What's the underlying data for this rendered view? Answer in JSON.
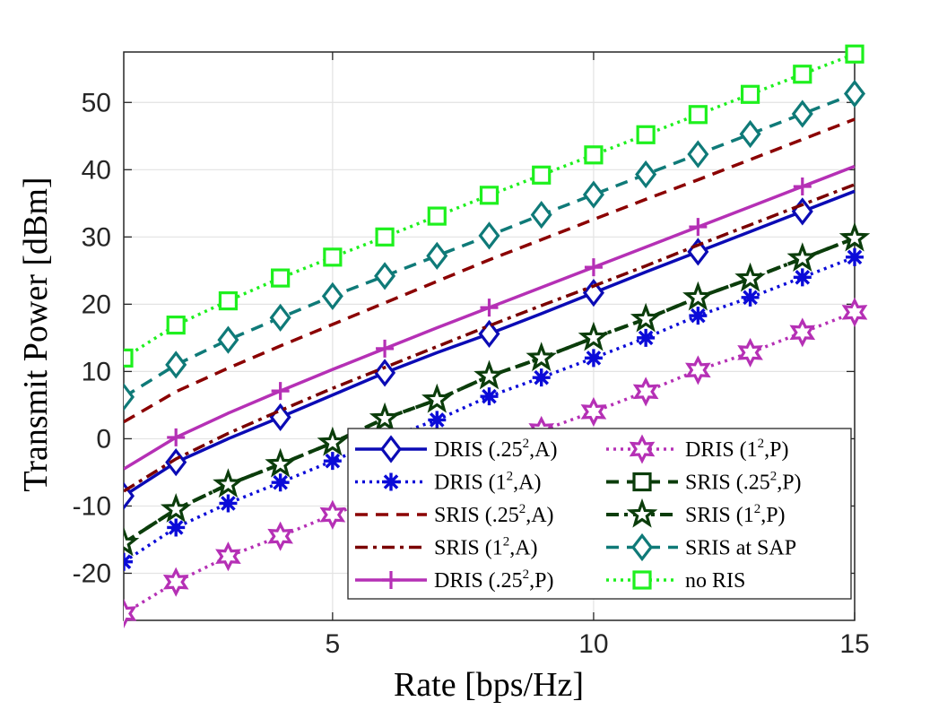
{
  "chart_data": {
    "type": "line",
    "xlabel": "Rate [bps/Hz]",
    "ylabel": "Transmit Power [dBm]",
    "xlim": [
      1,
      15
    ],
    "ylim": [
      -27,
      57.5
    ],
    "xticks": [
      5,
      10,
      15
    ],
    "yticks": [
      -20,
      -10,
      0,
      10,
      20,
      30,
      40,
      50
    ],
    "grid": true,
    "legend_position": "bottom-right",
    "legend_columns": 2,
    "series": [
      {
        "name": "DRIS (.25², A)",
        "label_main": "DRIS (.25",
        "label_sup": "2",
        "label_tail": ",A)",
        "color": "#0b0bb5",
        "dash": "",
        "width": 3.5,
        "marker": "diamond",
        "marker_x": [
          1,
          2,
          4,
          6,
          8,
          10,
          12,
          14
        ],
        "x": [
          1,
          2,
          3,
          4,
          5,
          6,
          7,
          8,
          9,
          10,
          11,
          12,
          13,
          14,
          15
        ],
        "y": [
          -8.5,
          -3.5,
          0,
          3.2,
          6.5,
          9.8,
          12.8,
          15.6,
          18.6,
          21.7,
          24.8,
          27.8,
          30.8,
          33.8,
          36.8
        ]
      },
      {
        "name": "DRIS (1², A)",
        "label_main": "DRIS (1",
        "label_sup": "2",
        "label_tail": ",A)",
        "color": "#0b0bd8",
        "dash": "3,5",
        "width": 3.5,
        "marker": "asterisk",
        "marker_x": [
          1,
          2,
          3,
          4,
          5,
          6,
          7,
          8,
          9,
          10,
          11,
          12,
          13,
          14,
          15
        ],
        "x": [
          1,
          2,
          3,
          4,
          5,
          6,
          7,
          8,
          9,
          10,
          11,
          12,
          13,
          14,
          15
        ],
        "y": [
          -18.3,
          -13.2,
          -9.6,
          -6.5,
          -3.3,
          0,
          2.8,
          6.3,
          9.1,
          12,
          15,
          18.3,
          21,
          24,
          27
        ]
      },
      {
        "name": "SRIS (.25², A)",
        "label_main": "SRIS (.25",
        "label_sup": "2",
        "label_tail": ",A)",
        "color": "#8b0000",
        "dash": "14,9",
        "width": 3.5,
        "marker": "none",
        "marker_x": [],
        "x": [
          1,
          2,
          3,
          4,
          5,
          6,
          7,
          8,
          9,
          10,
          11,
          12,
          13,
          14,
          15
        ],
        "y": [
          2.5,
          7,
          10.5,
          13.8,
          17,
          20.2,
          23.4,
          26.6,
          29.6,
          32.6,
          35.6,
          38.5,
          41.5,
          44.5,
          47.5
        ]
      },
      {
        "name": "SRIS (1², A)",
        "label_main": "SRIS (1",
        "label_sup": "2",
        "label_tail": ",A)",
        "color": "#7a0000",
        "dash": "14,6,4,6",
        "width": 3.5,
        "marker": "none",
        "marker_x": [],
        "x": [
          1,
          2,
          3,
          4,
          5,
          6,
          7,
          8,
          9,
          10,
          11,
          12,
          13,
          14,
          15
        ],
        "y": [
          -7.8,
          -3,
          0.8,
          4.2,
          7.5,
          10.6,
          13.7,
          16.8,
          19.8,
          22.7,
          25.7,
          28.8,
          31.8,
          34.8,
          37.8
        ]
      },
      {
        "name": "DRIS (.25², P)",
        "label_main": "DRIS (.25",
        "label_sup": "2",
        "label_tail": ",P)",
        "color": "#b530b5",
        "dash": "",
        "width": 3.5,
        "marker": "plus",
        "marker_x": [
          2,
          4,
          6,
          8,
          10,
          12,
          14
        ],
        "x": [
          1,
          2,
          3,
          4,
          5,
          6,
          7,
          8,
          9,
          10,
          11,
          12,
          13,
          14,
          15
        ],
        "y": [
          -4.5,
          0.2,
          3.8,
          7.1,
          10.3,
          13.4,
          16.5,
          19.5,
          22.5,
          25.5,
          28.5,
          31.5,
          34.5,
          37.5,
          40.5
        ]
      },
      {
        "name": "DRIS (1², P)",
        "label_main": "DRIS (1",
        "label_sup": "2",
        "label_tail": ",P)",
        "color": "#b530b5",
        "dash": "3,5",
        "width": 3.5,
        "marker": "hexagram",
        "marker_x": [
          1,
          2,
          3,
          4,
          5,
          6,
          7,
          8,
          9,
          10,
          11,
          12,
          13,
          14,
          15
        ],
        "x": [
          1,
          2,
          3,
          4,
          5,
          6,
          7,
          8,
          9,
          10,
          11,
          12,
          13,
          14,
          15
        ],
        "y": [
          -26,
          -21.3,
          -17.5,
          -14.5,
          -11.3,
          -8.2,
          -4.8,
          -2,
          1.2,
          4,
          7,
          10.2,
          12.8,
          15.8,
          18.8
        ]
      },
      {
        "name": "SRIS (.25², P)",
        "label_main": "SRIS (.25",
        "label_sup": "2",
        "label_tail": ",P)",
        "color": "#0b3d0b",
        "dash": "14,9",
        "width": 4,
        "marker": "square",
        "marker_x": [],
        "x": [
          1,
          2,
          3,
          4,
          5,
          6,
          7,
          8,
          9,
          10,
          11,
          12,
          13,
          14,
          15
        ],
        "y": [
          -15.5,
          -10.5,
          -6.8,
          -3.8,
          -0.6,
          3,
          5.8,
          9.3,
          12,
          15,
          17.8,
          21,
          23.8,
          26.8,
          29.8
        ]
      },
      {
        "name": "SRIS (1², P)",
        "label_main": "SRIS (1",
        "label_sup": "2",
        "label_tail": ",P)",
        "color": "#0b3d0b",
        "dash": "14,6,4,6",
        "width": 4,
        "marker": "pentagram",
        "marker_x": [
          1,
          2,
          3,
          4,
          5,
          6,
          7,
          8,
          9,
          10,
          11,
          12,
          13,
          14,
          15
        ],
        "x": [
          1,
          2,
          3,
          4,
          5,
          6,
          7,
          8,
          9,
          10,
          11,
          12,
          13,
          14,
          15
        ],
        "y": [
          -15.5,
          -10.5,
          -6.8,
          -3.8,
          -0.6,
          3,
          5.8,
          9.3,
          12,
          15,
          17.8,
          21,
          23.8,
          26.8,
          29.8
        ]
      },
      {
        "name": "SRIS at SAP",
        "label_main": "SRIS at SAP",
        "label_sup": "",
        "label_tail": "",
        "color": "#0f7a78",
        "dash": "14,9",
        "width": 3.5,
        "marker": "diamond",
        "marker_x": [
          1,
          2,
          3,
          4,
          5,
          6,
          7,
          8,
          9,
          10,
          11,
          12,
          13,
          14,
          15
        ],
        "x": [
          1,
          2,
          3,
          4,
          5,
          6,
          7,
          8,
          9,
          10,
          11,
          12,
          13,
          14,
          15
        ],
        "y": [
          6.2,
          11,
          14.7,
          18,
          21.2,
          24.2,
          27.2,
          30.2,
          33.3,
          36.3,
          39.3,
          42.3,
          45.3,
          48.3,
          51.3
        ]
      },
      {
        "name": "no RIS",
        "label_main": "no RIS",
        "label_sup": "",
        "label_tail": "",
        "color": "#1ef01e",
        "dash": "3,5",
        "width": 3.5,
        "marker": "square",
        "marker_x": [
          1,
          2,
          3,
          4,
          5,
          6,
          7,
          8,
          9,
          10,
          11,
          12,
          13,
          14,
          15
        ],
        "x": [
          1,
          2,
          3,
          4,
          5,
          6,
          7,
          8,
          9,
          10,
          11,
          12,
          13,
          14,
          15
        ],
        "y": [
          12,
          16.9,
          20.5,
          23.9,
          27,
          30,
          33.1,
          36.2,
          39.2,
          42.2,
          45.2,
          48.2,
          51.2,
          54.2,
          57.2
        ]
      }
    ]
  }
}
